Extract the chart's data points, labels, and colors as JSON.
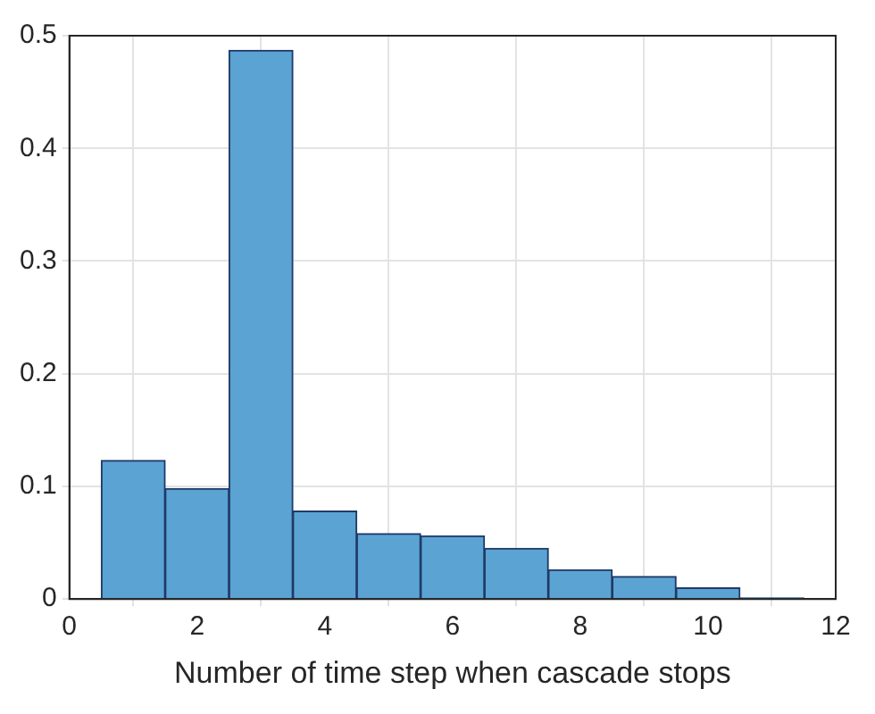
{
  "chart_data": {
    "type": "histogram",
    "xlabel": "Number of time step when cascade stops",
    "bins": [
      0.5,
      1.5,
      2.5,
      3.5,
      4.5,
      5.5,
      6.5,
      7.5,
      8.5,
      9.5,
      10.5,
      11.5
    ],
    "values": [
      0.123,
      0.098,
      0.487,
      0.078,
      0.058,
      0.056,
      0.045,
      0.026,
      0.02,
      0.01,
      0.001
    ],
    "color": "#5ba3d3",
    "xlim": [
      0,
      12
    ],
    "xticks": [
      0,
      2,
      4,
      6,
      8,
      10,
      12
    ],
    "ylim": [
      0,
      0.5
    ],
    "yticks": [
      0,
      0.1,
      0.2,
      0.3,
      0.4,
      0.5
    ],
    "grid": true,
    "legend": false
  }
}
